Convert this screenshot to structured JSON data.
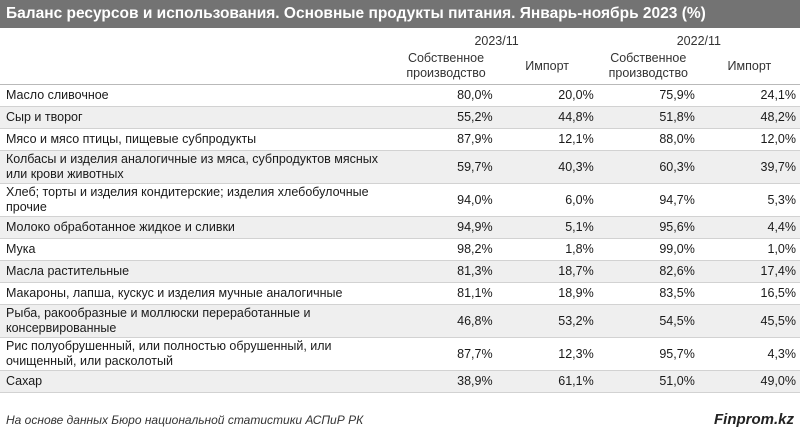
{
  "title": "Баланс ресурсов и использования. Основные продукты питания. Январь-ноябрь 2023 (%)",
  "periods": [
    "2023/11",
    "2022/11"
  ],
  "subheaders": [
    "Собственное производство",
    "Импорт",
    "Собственное производство",
    "Импорт"
  ],
  "rows": [
    {
      "name": "Масло сливочное",
      "values": [
        "80,0%",
        "20,0%",
        "75,9%",
        "24,1%"
      ]
    },
    {
      "name": "Сыр и творог",
      "values": [
        "55,2%",
        "44,8%",
        "51,8%",
        "48,2%"
      ]
    },
    {
      "name": "Мясо и мясо птицы, пищевые субпродукты",
      "values": [
        "87,9%",
        "12,1%",
        "88,0%",
        "12,0%"
      ]
    },
    {
      "name": "Колбасы и изделия аналогичные из мяса, субпродуктов мясных или крови животных",
      "values": [
        "59,7%",
        "40,3%",
        "60,3%",
        "39,7%"
      ]
    },
    {
      "name": "Хлеб; торты и изделия кондитерские; изделия хлебобулочные прочие",
      "values": [
        "94,0%",
        "6,0%",
        "94,7%",
        "5,3%"
      ]
    },
    {
      "name": "Молоко обработанное жидкое и сливки",
      "values": [
        "94,9%",
        "5,1%",
        "95,6%",
        "4,4%"
      ]
    },
    {
      "name": "Мука",
      "values": [
        "98,2%",
        "1,8%",
        "99,0%",
        "1,0%"
      ]
    },
    {
      "name": "Масла растительные",
      "values": [
        "81,3%",
        "18,7%",
        "82,6%",
        "17,4%"
      ]
    },
    {
      "name": "Макароны, лапша, кускус и изделия мучные аналогичные",
      "values": [
        "81,1%",
        "18,9%",
        "83,5%",
        "16,5%"
      ]
    },
    {
      "name": "Рыба, ракообразные и моллюски переработанные и консервированные",
      "values": [
        "46,8%",
        "53,2%",
        "54,5%",
        "45,5%"
      ]
    },
    {
      "name": "Рис полуобрушенный, или полностью обрушенный, или очищенный, или расколотый",
      "values": [
        "87,7%",
        "12,3%",
        "95,7%",
        "4,3%"
      ]
    },
    {
      "name": "Сахар",
      "values": [
        "38,9%",
        "61,1%",
        "51,0%",
        "49,0%"
      ]
    }
  ],
  "footer": {
    "source": "На основе данных Бюро национальной статистики АСПиР РК",
    "brand": "Finprom.kz"
  }
}
